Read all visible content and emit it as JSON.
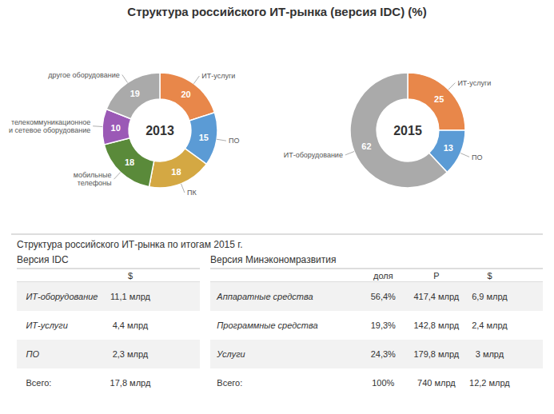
{
  "title": "Структура российского ИТ-рынка (версия IDC) (%)",
  "subtitle": "Структура российского ИТ-рынка по итогам 2015 г.",
  "chart_data": [
    {
      "type": "pie",
      "title": "2013",
      "categories": [
        "ИТ-услуги",
        "ПО",
        "ПК",
        "мобильные\nтелефоны",
        "телекоммуникационное\nи сетевое оборудование",
        "другое оборудование"
      ],
      "values": [
        20,
        15,
        18,
        18,
        10,
        19
      ],
      "colors": [
        "#E8874A",
        "#5B9BD5",
        "#D4A843",
        "#5A8A3A",
        "#9B59B6",
        "#AAAAAA"
      ],
      "data_labels": true
    },
    {
      "type": "pie",
      "title": "2015",
      "categories": [
        "ИТ-услуги",
        "ПО",
        "ИТ-оборудование"
      ],
      "values": [
        25,
        13,
        62
      ],
      "colors": [
        "#E8874A",
        "#5B9BD5",
        "#AAAAAA"
      ],
      "data_labels": true
    },
    {
      "type": "table",
      "title": "Версия IDC",
      "columns": [
        null,
        "$"
      ],
      "rows": [
        [
          "ИТ-оборудование",
          "11,1 млрд"
        ],
        [
          "ИТ-услуги",
          "4,4 млрд"
        ],
        [
          "ПО",
          "2,3 млрд"
        ],
        [
          "Всего:",
          "17,8 млрд"
        ]
      ]
    },
    {
      "type": "table",
      "title": "Версия Минэкономразвития",
      "columns": [
        null,
        "доля",
        "Р",
        "$"
      ],
      "rows": [
        [
          "Аппаратные средства",
          "56,4%",
          "417,4 млрд",
          "6,9 млрд"
        ],
        [
          "Программные средства",
          "19,3%",
          "142,8 млрд",
          "2,4 млрд"
        ],
        [
          "Услуги",
          "24,3%",
          "179,8 млрд",
          "3 млрд"
        ],
        [
          "Всего:",
          "100%",
          "740 млрд",
          "12,2 млрд"
        ]
      ]
    }
  ]
}
